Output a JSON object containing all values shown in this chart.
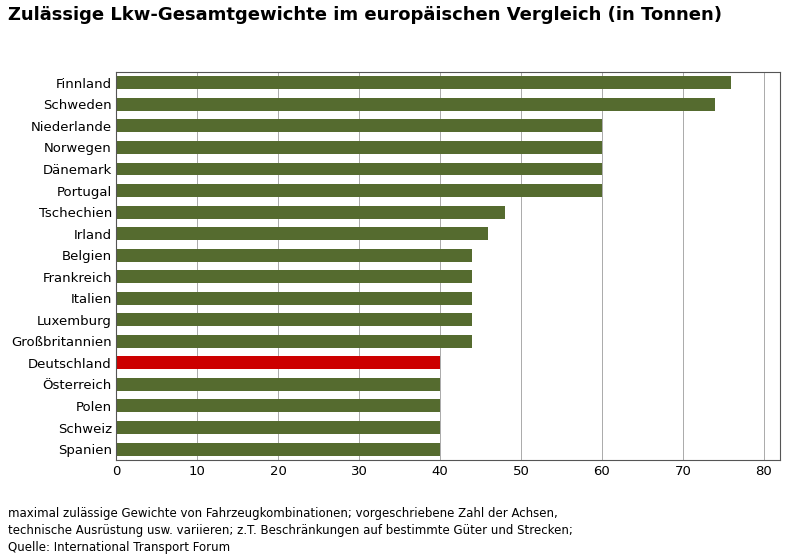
{
  "title": "Zulässige Lkw-Gesamtgewichte im europäischen Vergleich (in Tonnen)",
  "footnote": "maximal zulässige Gewichte von Fahrzeugkombinationen; vorgeschriebene Zahl der Achsen,\ntechnische Ausrüstung usw. variieren; z.T. Beschränkungen auf bestimmte Güter und Strecken;\nQuelle: International Transport Forum",
  "categories": [
    "Finnland",
    "Schweden",
    "Niederlande",
    "Norwegen",
    "Dänemark",
    "Portugal",
    "Tschechien",
    "Irland",
    "Belgien",
    "Frankreich",
    "Italien",
    "Luxemburg",
    "Großbritannien",
    "Deutschland",
    "Österreich",
    "Polen",
    "Schweiz",
    "Spanien"
  ],
  "values": [
    76,
    74,
    60,
    60,
    60,
    60,
    48,
    46,
    44,
    44,
    44,
    44,
    44,
    40,
    40,
    40,
    40,
    40
  ],
  "bar_colors": [
    "#556B2F",
    "#556B2F",
    "#556B2F",
    "#556B2F",
    "#556B2F",
    "#556B2F",
    "#556B2F",
    "#556B2F",
    "#556B2F",
    "#556B2F",
    "#556B2F",
    "#556B2F",
    "#556B2F",
    "#CC0000",
    "#556B2F",
    "#556B2F",
    "#556B2F",
    "#556B2F"
  ],
  "xlim": [
    0,
    82
  ],
  "xticks": [
    0,
    10,
    20,
    30,
    40,
    50,
    60,
    70,
    80
  ],
  "grid_color": "#AAAAAA",
  "background_color": "#FFFFFF",
  "bar_height": 0.6,
  "title_fontsize": 13,
  "tick_fontsize": 9.5,
  "footnote_fontsize": 8.5
}
